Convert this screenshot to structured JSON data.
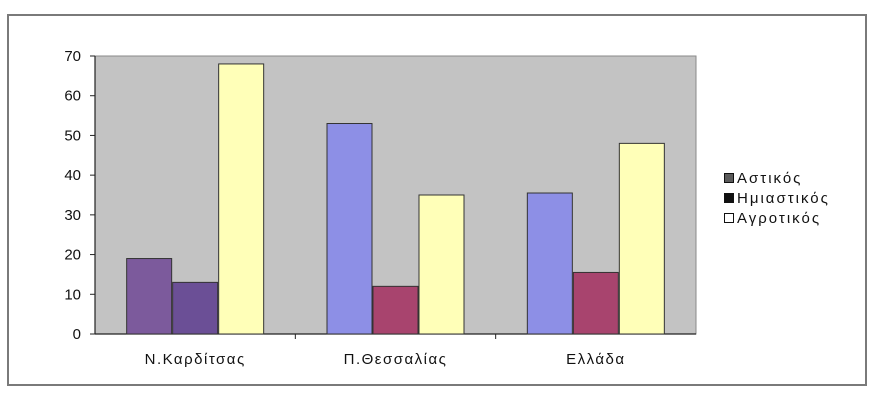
{
  "chart_data": {
    "type": "bar",
    "categories": [
      "Ν.Καρδίτσας",
      "Π.Θεσσαλίας",
      "Ελλάδα"
    ],
    "series": [
      {
        "name": "Αστικός",
        "values": [
          19,
          53,
          35.5
        ],
        "color": "#8d8fe6",
        "first_color": "#7c5a9c"
      },
      {
        "name": "Ημιαστικός",
        "values": [
          13,
          12,
          15.5
        ],
        "color": "#a8446e",
        "first_color": "#6b4f96"
      },
      {
        "name": "Αγροτικός",
        "values": [
          68,
          35,
          48
        ],
        "color": "#ffffb8"
      }
    ],
    "yticks": [
      0,
      10,
      20,
      30,
      40,
      50,
      60,
      70
    ],
    "ylim": [
      0,
      70
    ],
    "grid": false,
    "legend_position": "right",
    "plot_background": "#c3c3c3"
  }
}
